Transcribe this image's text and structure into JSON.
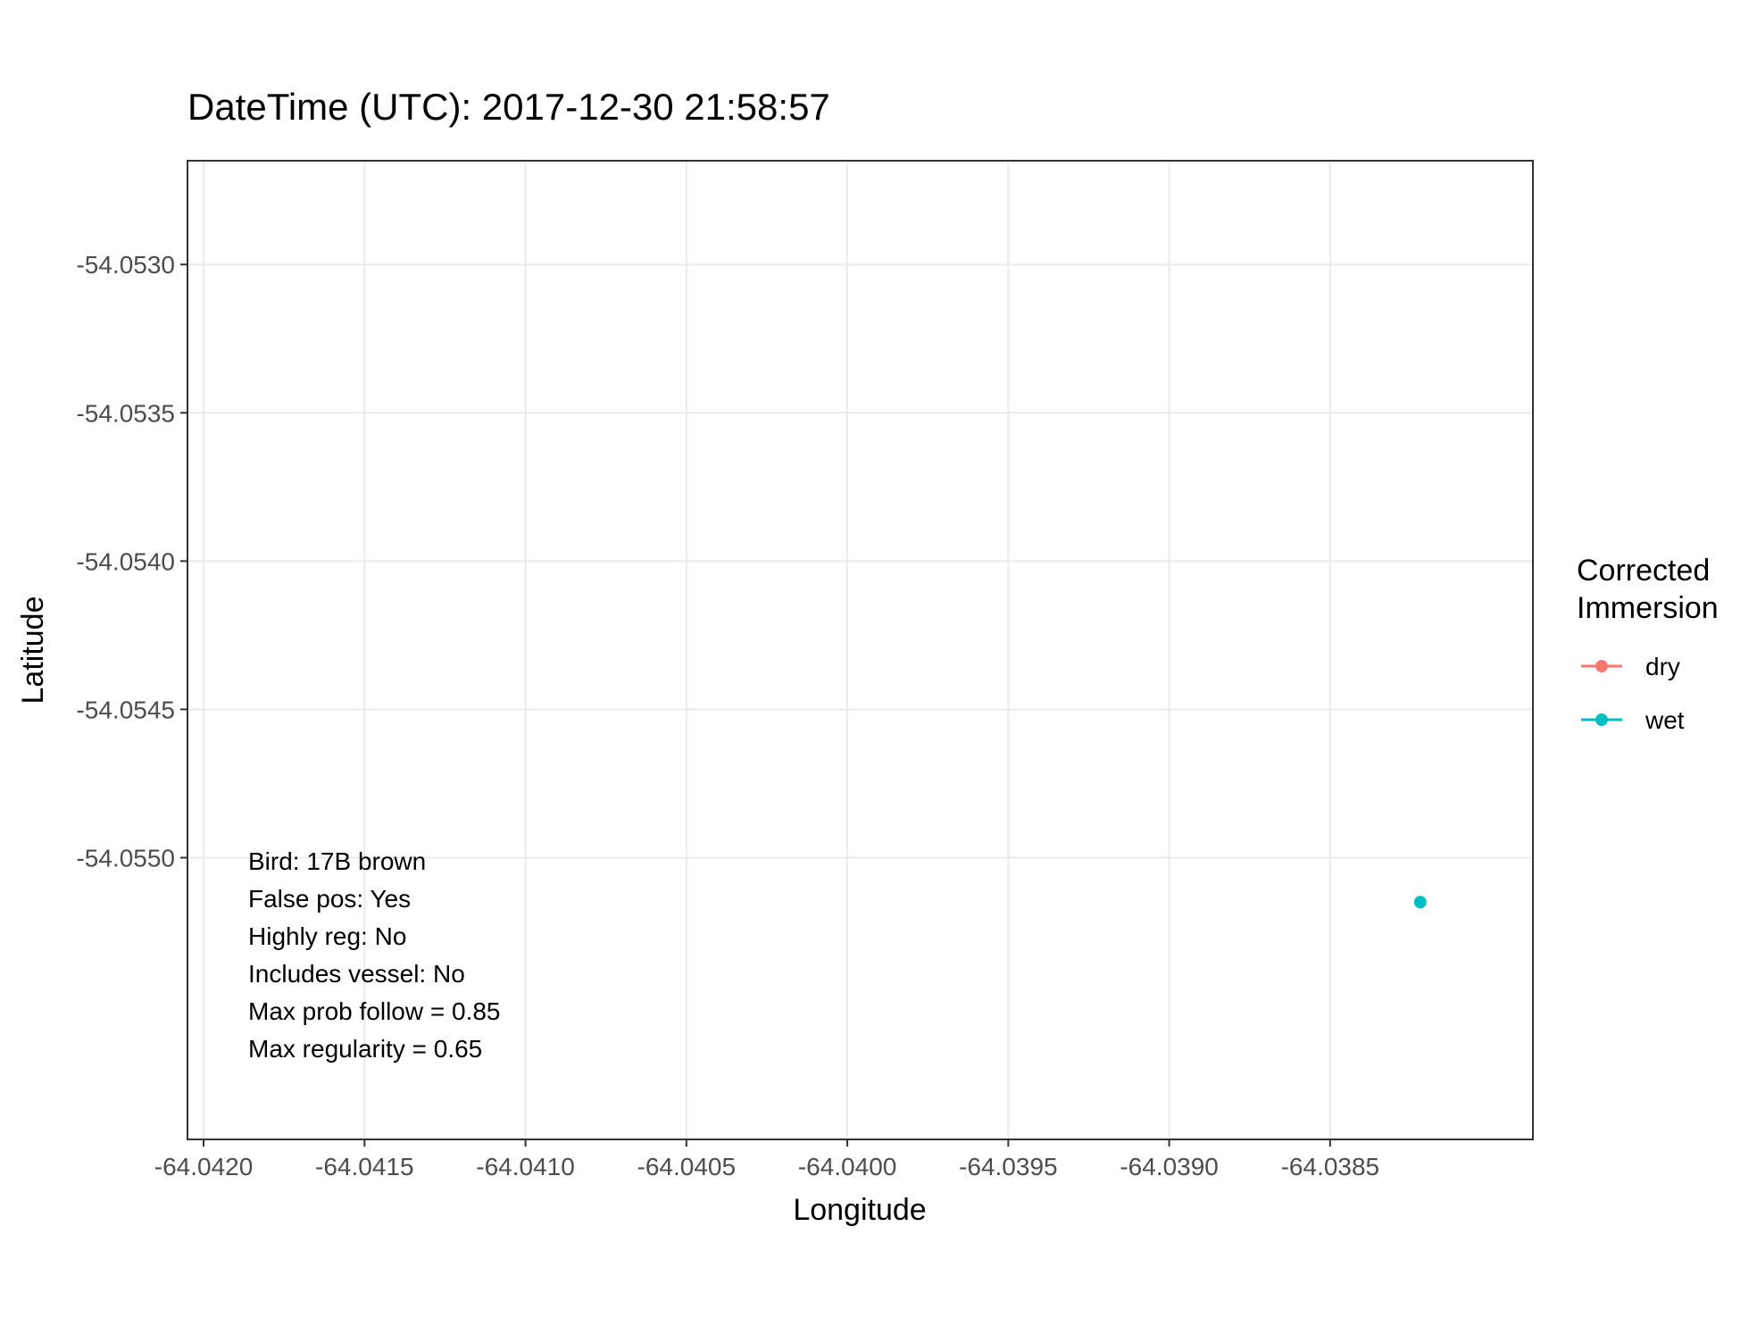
{
  "chart_data": {
    "type": "scatter",
    "title": "DateTime (UTC): 2017-12-30 21:58:57",
    "xlabel": "Longitude",
    "ylabel": "Latitude",
    "xlim": [
      -64.04205,
      -64.03787
    ],
    "ylim": [
      -54.05595,
      -54.05265
    ],
    "x_ticks": [
      -64.042,
      -64.0415,
      -64.041,
      -64.0405,
      -64.04,
      -64.0395,
      -64.039,
      -64.0385
    ],
    "x_tick_labels": [
      "-64.0420",
      "-64.0415",
      "-64.0410",
      "-64.0405",
      "-64.0400",
      "-64.0395",
      "-64.0390",
      "-64.0385"
    ],
    "y_ticks": [
      -54.053,
      -54.0535,
      -54.054,
      -54.0545,
      -54.055
    ],
    "y_tick_labels": [
      "-54.0530",
      "-54.0535",
      "-54.0540",
      "-54.0545",
      "-54.0550"
    ],
    "grid": true,
    "legend": {
      "title_lines": [
        "Corrected",
        "Immersion"
      ],
      "placement": "right",
      "entries": [
        {
          "label": "dry",
          "color": "#F8766D"
        },
        {
          "label": "wet",
          "color": "#00BFC4"
        }
      ]
    },
    "points": [
      {
        "x": -64.03822,
        "y": -54.05515,
        "group": "wet",
        "color": "#00BFC4"
      }
    ],
    "annotations": [
      "Bird: 17B brown",
      "False pos: Yes",
      "Highly reg: No",
      "Includes vessel: No",
      "Max prob follow = 0.85",
      "Max regularity = 0.65"
    ]
  }
}
